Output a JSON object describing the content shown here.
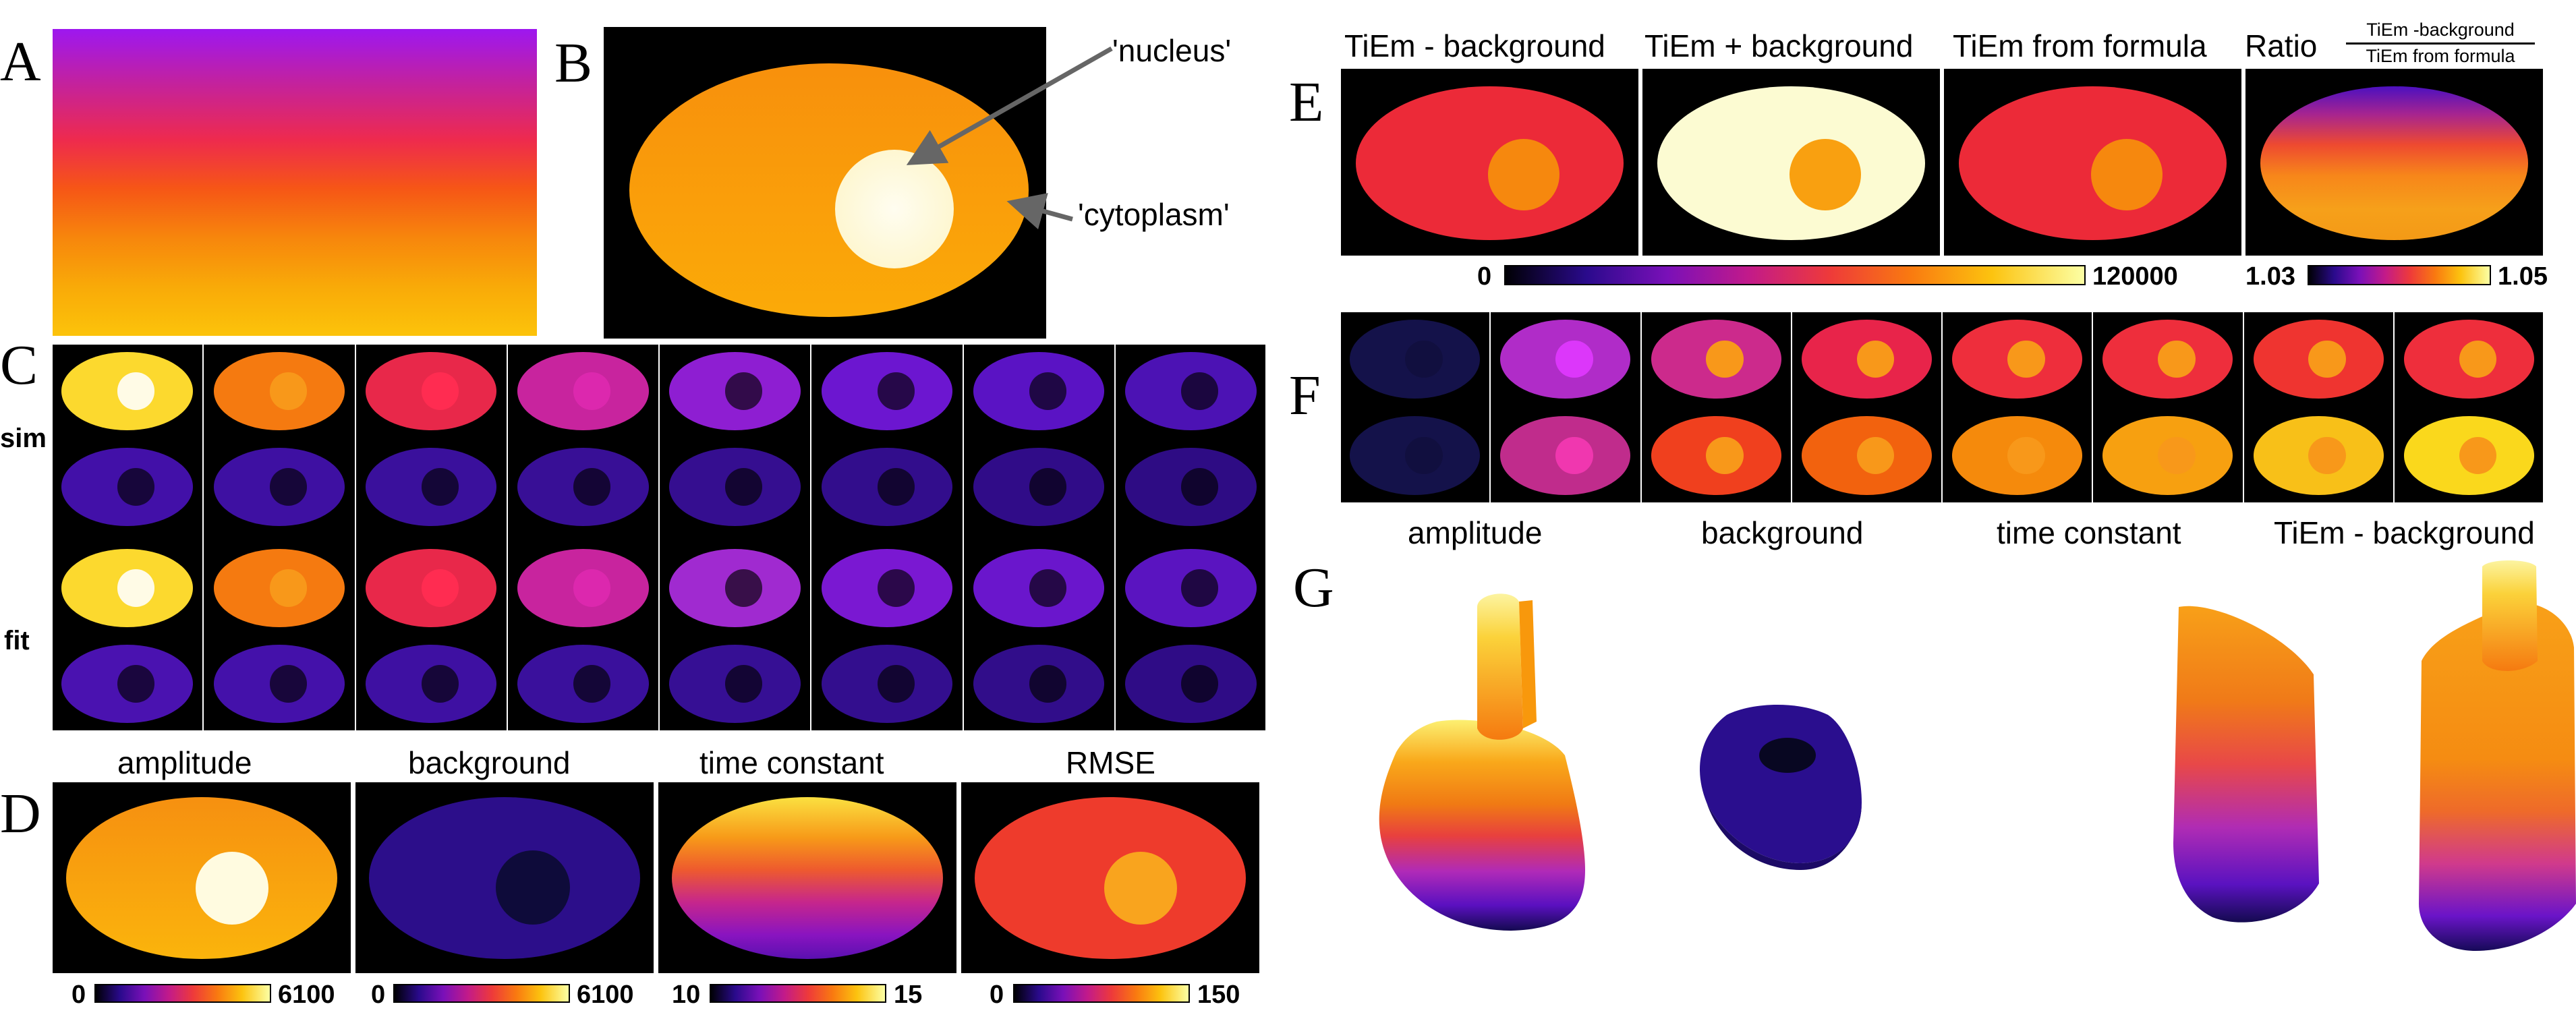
{
  "panels": {
    "A": "A",
    "B": "B",
    "C": "C",
    "D": "D",
    "E": "E",
    "F": "F",
    "G": "G"
  },
  "panel_b": {
    "nucleus_label": "'nucleus'",
    "cytoplasm_label": "'cytoplasm'"
  },
  "panel_c": {
    "row_labels": [
      "sim",
      "fit"
    ]
  },
  "panel_d": {
    "titles": [
      "amplitude",
      "background",
      "time constant",
      "RMSE"
    ],
    "colorbars": [
      {
        "min": "0",
        "max": "6100"
      },
      {
        "min": "0",
        "max": "6100"
      },
      {
        "min": "10",
        "max": "15"
      },
      {
        "min": "0",
        "max": "150"
      }
    ]
  },
  "panel_e": {
    "titles": [
      "TiEm - background",
      "TiEm + background",
      "TiEm from formula"
    ],
    "ratio_title": "Ratio",
    "ratio_numerator": "TiEm -background",
    "ratio_denominator": "TiEm from formula",
    "colorbars": [
      {
        "min": "0",
        "max": "120000"
      },
      {
        "min": "1.03",
        "max": "1.05"
      }
    ]
  },
  "panel_f": {
    "labels": [
      "amplitude",
      "background",
      "time constant",
      "TiEm - background"
    ]
  },
  "colors": {
    "c_sim_row1": [
      "#fcd92e",
      "#f57a10",
      "#e8284a",
      "#c8249e",
      "#8e1ed2",
      "#6c16d0",
      "#5a13c4",
      "#4c12b4"
    ],
    "c_sim_row2": [
      "#4210a8",
      "#3e10a2",
      "#3a109c",
      "#380f96",
      "#350e90",
      "#320d8c",
      "#300c88",
      "#2e0c84"
    ],
    "c_fit_row1": [
      "#fcd92e",
      "#f57a10",
      "#e8284a",
      "#c8249e",
      "#a02ad0",
      "#7a18d2",
      "#6a16cc",
      "#5a14c0"
    ],
    "c_fit_row2": [
      "#4a12b0",
      "#4411aa",
      "#3e10a2",
      "#3a109c",
      "#360f94",
      "#330e8e",
      "#310d8a",
      "#2f0c86"
    ],
    "f_row1": [
      "#14124a",
      "#b02cc8",
      "#cc2a8c",
      "#e8244a",
      "#ee2e3c",
      "#ee2e3c",
      "#ef3430",
      "#ee2e3c"
    ],
    "f_row2": [
      "#14124a",
      "#c02c8c",
      "#f0401e",
      "#f2620e",
      "#f58a0c",
      "#f7a010",
      "#f8c018",
      "#fad81c"
    ]
  }
}
